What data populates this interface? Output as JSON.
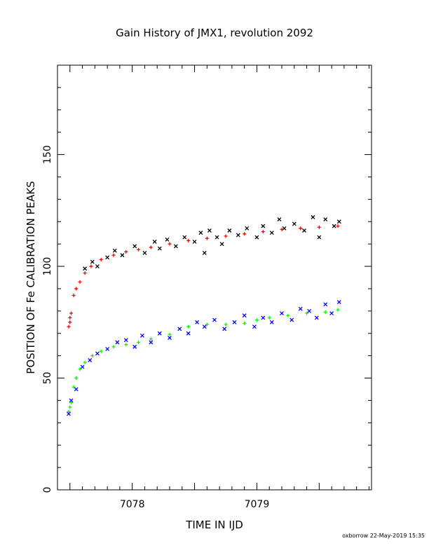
{
  "chart_data": {
    "type": "scatter",
    "title": "Gain History of JMX1, revolution 2092",
    "xlabel": "TIME IN IJD",
    "ylabel": "POSITION OF Fe CALIBRATION PEAKS",
    "xlim": [
      7077.4,
      7079.92
    ],
    "ylim": [
      0,
      190
    ],
    "xticks_labeled": [
      7078,
      7079
    ],
    "yticks_labeled": [
      0,
      50,
      100,
      150
    ],
    "grid": false,
    "legend": "none",
    "series": [
      {
        "color": "#ff0000",
        "marker": "plus",
        "points": [
          [
            7077.49,
            73
          ],
          [
            7077.5,
            75
          ],
          [
            7077.5,
            77
          ],
          [
            7077.51,
            79
          ],
          [
            7077.53,
            87
          ],
          [
            7077.55,
            90
          ],
          [
            7077.58,
            93
          ],
          [
            7077.62,
            97
          ],
          [
            7077.67,
            100
          ],
          [
            7077.75,
            103
          ],
          [
            7077.85,
            105
          ],
          [
            7077.95,
            106.5
          ],
          [
            7078.05,
            107.5
          ],
          [
            7078.15,
            108.5
          ],
          [
            7078.3,
            110
          ],
          [
            7078.45,
            111.5
          ],
          [
            7078.6,
            112.5
          ],
          [
            7078.75,
            113.5
          ],
          [
            7078.9,
            114.5
          ],
          [
            7079.05,
            115.5
          ],
          [
            7079.2,
            116.5
          ],
          [
            7079.35,
            117
          ],
          [
            7079.5,
            117.5
          ],
          [
            7079.65,
            118
          ]
        ]
      },
      {
        "color": "#000000",
        "marker": "cross",
        "points": [
          [
            7077.62,
            99
          ],
          [
            7077.68,
            102
          ],
          [
            7077.72,
            100
          ],
          [
            7077.8,
            104
          ],
          [
            7077.86,
            107
          ],
          [
            7077.92,
            105
          ],
          [
            7078.02,
            109
          ],
          [
            7078.1,
            106
          ],
          [
            7078.18,
            111
          ],
          [
            7078.22,
            108
          ],
          [
            7078.28,
            112
          ],
          [
            7078.35,
            109
          ],
          [
            7078.42,
            113
          ],
          [
            7078.5,
            111
          ],
          [
            7078.55,
            115
          ],
          [
            7078.58,
            106
          ],
          [
            7078.62,
            116
          ],
          [
            7078.68,
            113
          ],
          [
            7078.72,
            110
          ],
          [
            7078.78,
            116
          ],
          [
            7078.85,
            114
          ],
          [
            7078.92,
            117
          ],
          [
            7079.0,
            113
          ],
          [
            7079.05,
            118
          ],
          [
            7079.12,
            115
          ],
          [
            7079.18,
            121
          ],
          [
            7079.22,
            117
          ],
          [
            7079.3,
            119
          ],
          [
            7079.38,
            116
          ],
          [
            7079.45,
            122
          ],
          [
            7079.5,
            113
          ],
          [
            7079.55,
            121
          ],
          [
            7079.62,
            118
          ],
          [
            7079.66,
            120
          ]
        ]
      },
      {
        "color": "#00ff00",
        "marker": "plus",
        "points": [
          [
            7077.49,
            35
          ],
          [
            7077.5,
            37
          ],
          [
            7077.51,
            39
          ],
          [
            7077.53,
            46
          ],
          [
            7077.55,
            50
          ],
          [
            7077.58,
            54
          ],
          [
            7077.62,
            57
          ],
          [
            7077.68,
            60
          ],
          [
            7077.75,
            62
          ],
          [
            7077.85,
            64
          ],
          [
            7077.95,
            65
          ],
          [
            7078.05,
            66
          ],
          [
            7078.15,
            67.5
          ],
          [
            7078.3,
            69.5
          ],
          [
            7078.45,
            73
          ],
          [
            7078.6,
            74
          ],
          [
            7078.75,
            74
          ],
          [
            7078.9,
            74.5
          ],
          [
            7079.0,
            76
          ],
          [
            7079.1,
            77
          ],
          [
            7079.25,
            78
          ],
          [
            7079.4,
            79
          ],
          [
            7079.55,
            79.5
          ],
          [
            7079.65,
            80.5
          ]
        ]
      },
      {
        "color": "#0000ff",
        "marker": "cross",
        "points": [
          [
            7077.49,
            34
          ],
          [
            7077.51,
            40
          ],
          [
            7077.55,
            45
          ],
          [
            7077.6,
            55
          ],
          [
            7077.66,
            58
          ],
          [
            7077.72,
            61
          ],
          [
            7077.8,
            63
          ],
          [
            7077.88,
            66
          ],
          [
            7077.95,
            67
          ],
          [
            7078.02,
            64
          ],
          [
            7078.08,
            69
          ],
          [
            7078.15,
            66
          ],
          [
            7078.22,
            70
          ],
          [
            7078.3,
            68
          ],
          [
            7078.38,
            72
          ],
          [
            7078.45,
            70
          ],
          [
            7078.52,
            75
          ],
          [
            7078.58,
            73
          ],
          [
            7078.66,
            76
          ],
          [
            7078.74,
            72
          ],
          [
            7078.82,
            75
          ],
          [
            7078.9,
            78
          ],
          [
            7078.98,
            73
          ],
          [
            7079.05,
            77
          ],
          [
            7079.12,
            75
          ],
          [
            7079.2,
            79
          ],
          [
            7079.28,
            76
          ],
          [
            7079.35,
            81
          ],
          [
            7079.42,
            80
          ],
          [
            7079.48,
            77
          ],
          [
            7079.55,
            83
          ],
          [
            7079.6,
            79
          ],
          [
            7079.66,
            84
          ]
        ]
      }
    ]
  },
  "footer": "oxborrow 22-May-2019 15:35"
}
